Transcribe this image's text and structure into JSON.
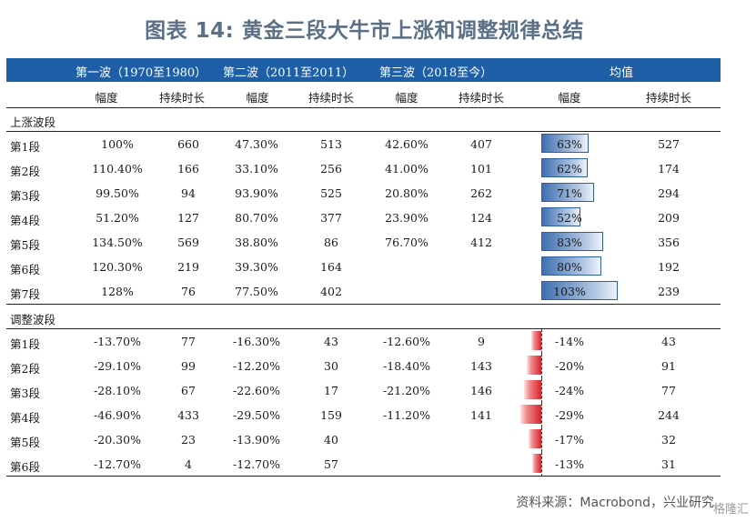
{
  "title": "图表 14: 黄金三段大牛市上涨和调整规律总结",
  "header": {
    "wave1": "第一波（1970至1980）",
    "wave2": "第二波（2011至2011）",
    "wave3": "第三波（2018至今）",
    "avg": "均值"
  },
  "subheader": [
    "幅度",
    "持续时长",
    "幅度",
    "持续时长",
    "幅度",
    "持续时长",
    "幅度",
    "持续时长"
  ],
  "sections": {
    "up": "上涨波段",
    "down": "调整波段"
  },
  "up_rows": [
    {
      "seg": "第1段",
      "w1_amp": "100%",
      "w1_dur": "660",
      "w2_amp": "47.30%",
      "w2_dur": "513",
      "w3_amp": "42.60%",
      "w3_dur": "407",
      "avg_amp": "63%",
      "avg_amp_value": 63,
      "avg_dur": "527"
    },
    {
      "seg": "第2段",
      "w1_amp": "110.40%",
      "w1_dur": "166",
      "w2_amp": "33.10%",
      "w2_dur": "256",
      "w3_amp": "41.00%",
      "w3_dur": "101",
      "avg_amp": "62%",
      "avg_amp_value": 62,
      "avg_dur": "174"
    },
    {
      "seg": "第3段",
      "w1_amp": "99.50%",
      "w1_dur": "94",
      "w2_amp": "93.90%",
      "w2_dur": "525",
      "w3_amp": "20.80%",
      "w3_dur": "262",
      "avg_amp": "71%",
      "avg_amp_value": 71,
      "avg_dur": "294"
    },
    {
      "seg": "第4段",
      "w1_amp": "51.20%",
      "w1_dur": "127",
      "w2_amp": "80.70%",
      "w2_dur": "377",
      "w3_amp": "23.90%",
      "w3_dur": "124",
      "avg_amp": "52%",
      "avg_amp_value": 52,
      "avg_dur": "209"
    },
    {
      "seg": "第5段",
      "w1_amp": "134.50%",
      "w1_dur": "569",
      "w2_amp": "38.80%",
      "w2_dur": "86",
      "w3_amp": "76.70%",
      "w3_dur": "412",
      "avg_amp": "83%",
      "avg_amp_value": 83,
      "avg_dur": "356"
    },
    {
      "seg": "第6段",
      "w1_amp": "120.30%",
      "w1_dur": "219",
      "w2_amp": "39.30%",
      "w2_dur": "164",
      "w3_amp": "",
      "w3_dur": "",
      "avg_amp": "80%",
      "avg_amp_value": 80,
      "avg_dur": "192"
    },
    {
      "seg": "第7段",
      "w1_amp": "128%",
      "w1_dur": "76",
      "w2_amp": "77.50%",
      "w2_dur": "402",
      "w3_amp": "",
      "w3_dur": "",
      "avg_amp": "103%",
      "avg_amp_value": 103,
      "avg_dur": "239"
    }
  ],
  "down_rows": [
    {
      "seg": "第1段",
      "w1_amp": "-13.70%",
      "w1_dur": "77",
      "w2_amp": "-16.30%",
      "w2_dur": "43",
      "w3_amp": "-12.60%",
      "w3_dur": "9",
      "avg_amp": "-14%",
      "avg_amp_value": -14,
      "avg_dur": "43"
    },
    {
      "seg": "第2段",
      "w1_amp": "-29.10%",
      "w1_dur": "99",
      "w2_amp": "-12.20%",
      "w2_dur": "30",
      "w3_amp": "-18.40%",
      "w3_dur": "143",
      "avg_amp": "-20%",
      "avg_amp_value": -20,
      "avg_dur": "91"
    },
    {
      "seg": "第3段",
      "w1_amp": "-28.10%",
      "w1_dur": "67",
      "w2_amp": "-22.60%",
      "w2_dur": "17",
      "w3_amp": "-21.20%",
      "w3_dur": "146",
      "avg_amp": "-24%",
      "avg_amp_value": -24,
      "avg_dur": "77"
    },
    {
      "seg": "第4段",
      "w1_amp": "-46.90%",
      "w1_dur": "433",
      "w2_amp": "-29.50%",
      "w2_dur": "159",
      "w3_amp": "-11.20%",
      "w3_dur": "141",
      "avg_amp": "-29%",
      "avg_amp_value": -29,
      "avg_dur": "244"
    },
    {
      "seg": "第5段",
      "w1_amp": "-20.30%",
      "w1_dur": "23",
      "w2_amp": "-13.90%",
      "w2_dur": "40",
      "w3_amp": "",
      "w3_dur": "",
      "avg_amp": "-17%",
      "avg_amp_value": -17,
      "avg_dur": "32"
    },
    {
      "seg": "第6段",
      "w1_amp": "-12.70%",
      "w1_dur": "4",
      "w2_amp": "-12.70%",
      "w2_dur": "57",
      "w3_amp": "",
      "w3_dur": "",
      "avg_amp": "-13%",
      "avg_amp_value": -13,
      "avg_dur": "31"
    }
  ],
  "colors": {
    "header": "#1f5fa8",
    "pos_bar": "#3f6fb0",
    "neg_bar": "#d4232a",
    "title": "#5b6f86"
  },
  "source": "资料来源：Macrobond，兴业研究",
  "watermark": "格隆汇"
}
